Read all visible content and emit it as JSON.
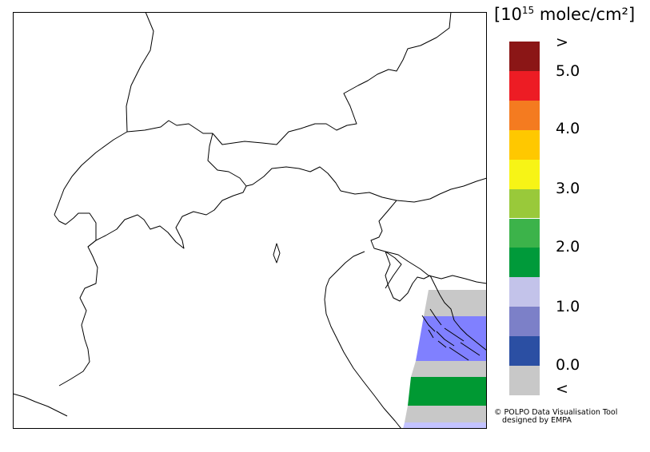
{
  "colorbar": {
    "unit_prefix": "[10",
    "unit_exp": "15",
    "unit_suffix": " molec/cm²]",
    "colors": [
      "#c8c8c8",
      "#2b4fa3",
      "#7c80c8",
      "#c3c3ea",
      "#009a3a",
      "#3cb34a",
      "#99c93a",
      "#f7f416",
      "#ffc800",
      "#f47b20",
      "#ed1c24",
      "#8b1616"
    ],
    "ticks": {
      "below": "<",
      "t0": "0.0",
      "t1": "1.0",
      "t2": "2.0",
      "t3": "3.0",
      "t4": "4.0",
      "t5": "5.0",
      "above": ">"
    }
  },
  "credit": {
    "line1": "© POLPO Data Visualisation Tool",
    "line2": "designed by EMPA"
  },
  "map": {
    "swath_colors": {
      "grey": "#c8c8c8",
      "blue": "#8080ff",
      "green": "#009933",
      "light": "#c3c3ff"
    }
  }
}
